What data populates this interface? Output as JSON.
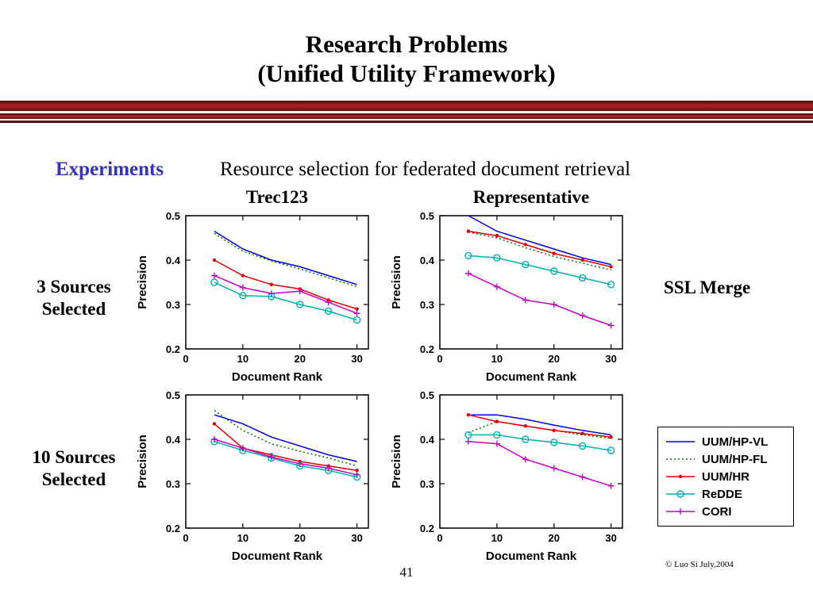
{
  "slide": {
    "title_line1": "Research Problems",
    "title_line2": "(Unified Utility Framework)",
    "experiments_label": "Experiments",
    "experiments_text": "Resource selection for federated document retrieval",
    "col_left": "Trec123",
    "col_right": "Representative",
    "row_top_line1": "3 Sources",
    "row_top_line2": "Selected",
    "row_bottom_line1": "10 Sources",
    "row_bottom_line2": "Selected",
    "ssl_merge": "SSL Merge",
    "copyright": "© Luo Si July,2004",
    "page_number": "41",
    "accent_color": "#6b0f0f",
    "experiments_color": "#3333bb"
  },
  "legend": {
    "items": [
      {
        "label": "UUM/HP-VL"
      },
      {
        "label": "UUM/HP-FL"
      },
      {
        "label": "UUM/HR"
      },
      {
        "label": "ReDDE"
      },
      {
        "label": "CORI"
      }
    ]
  },
  "series_styles": [
    {
      "name": "UUM/HP-VL",
      "color": "#0000dd",
      "dash": "none",
      "marker": "none"
    },
    {
      "name": "UUM/HP-FL",
      "color": "#007700",
      "dash": "2 3",
      "marker": "none"
    },
    {
      "name": "UUM/HR",
      "color": "#e00000",
      "dash": "none",
      "marker": "dot"
    },
    {
      "name": "ReDDE",
      "color": "#00b0b0",
      "dash": "none",
      "marker": "circle"
    },
    {
      "name": "CORI",
      "color": "#cc00cc",
      "dash": "none",
      "marker": "plus"
    }
  ],
  "chart_data": [
    {
      "type": "line",
      "title": "Trec123 — 3 Sources Selected",
      "xlabel": "Document Rank",
      "ylabel": "Precision",
      "xlim": [
        0,
        32
      ],
      "ylim": [
        0.2,
        0.5
      ],
      "xticks": [
        0,
        10,
        20,
        30
      ],
      "yticks": [
        0.2,
        0.3,
        0.4,
        0.5
      ],
      "x": [
        5,
        10,
        15,
        20,
        25,
        30
      ],
      "series": [
        {
          "name": "UUM/HP-VL",
          "values": [
            0.465,
            0.425,
            0.4,
            0.385,
            0.365,
            0.345
          ]
        },
        {
          "name": "UUM/HP-FL",
          "values": [
            0.46,
            0.42,
            0.398,
            0.38,
            0.36,
            0.34
          ]
        },
        {
          "name": "UUM/HR",
          "values": [
            0.4,
            0.365,
            0.345,
            0.335,
            0.31,
            0.29
          ]
        },
        {
          "name": "ReDDE",
          "values": [
            0.35,
            0.32,
            0.318,
            0.3,
            0.285,
            0.265
          ]
        },
        {
          "name": "CORI",
          "values": [
            0.365,
            0.338,
            0.325,
            0.33,
            0.305,
            0.28
          ]
        }
      ]
    },
    {
      "type": "line",
      "title": "Representative — 3 Sources Selected",
      "xlabel": "Document Rank",
      "ylabel": "Precision",
      "xlim": [
        0,
        32
      ],
      "ylim": [
        0.2,
        0.5
      ],
      "xticks": [
        0,
        10,
        20,
        30
      ],
      "yticks": [
        0.2,
        0.3,
        0.4,
        0.5
      ],
      "x": [
        5,
        10,
        15,
        20,
        25,
        30
      ],
      "series": [
        {
          "name": "UUM/HP-VL",
          "values": [
            0.5,
            0.465,
            0.445,
            0.425,
            0.405,
            0.39
          ]
        },
        {
          "name": "UUM/HP-FL",
          "values": [
            0.463,
            0.45,
            0.428,
            0.408,
            0.393,
            0.378
          ]
        },
        {
          "name": "UUM/HR",
          "values": [
            0.465,
            0.455,
            0.435,
            0.415,
            0.4,
            0.385
          ]
        },
        {
          "name": "ReDDE",
          "values": [
            0.41,
            0.405,
            0.39,
            0.375,
            0.36,
            0.345
          ]
        },
        {
          "name": "CORI",
          "values": [
            0.37,
            0.34,
            0.31,
            0.3,
            0.275,
            0.253
          ]
        }
      ]
    },
    {
      "type": "line",
      "title": "Trec123 — 10 Sources Selected",
      "xlabel": "Document Rank",
      "ylabel": "Precision",
      "xlim": [
        0,
        32
      ],
      "ylim": [
        0.2,
        0.5
      ],
      "xticks": [
        0,
        10,
        20,
        30
      ],
      "yticks": [
        0.2,
        0.3,
        0.4,
        0.5
      ],
      "x": [
        5,
        10,
        15,
        20,
        25,
        30
      ],
      "series": [
        {
          "name": "UUM/HP-VL",
          "values": [
            0.455,
            0.435,
            0.405,
            0.385,
            0.365,
            0.35
          ]
        },
        {
          "name": "UUM/HP-FL",
          "values": [
            0.465,
            0.42,
            0.39,
            0.373,
            0.358,
            0.34
          ]
        },
        {
          "name": "UUM/HR",
          "values": [
            0.435,
            0.38,
            0.365,
            0.35,
            0.34,
            0.33
          ]
        },
        {
          "name": "ReDDE",
          "values": [
            0.395,
            0.375,
            0.358,
            0.34,
            0.33,
            0.315
          ]
        },
        {
          "name": "CORI",
          "values": [
            0.4,
            0.38,
            0.36,
            0.345,
            0.335,
            0.32
          ]
        }
      ]
    },
    {
      "type": "line",
      "title": "Representative — 10 Sources Selected",
      "xlabel": "Document Rank",
      "ylabel": "Precision",
      "xlim": [
        0,
        32
      ],
      "ylim": [
        0.2,
        0.5
      ],
      "xticks": [
        0,
        10,
        20,
        30
      ],
      "yticks": [
        0.2,
        0.3,
        0.4,
        0.5
      ],
      "x": [
        5,
        10,
        15,
        20,
        25,
        30
      ],
      "series": [
        {
          "name": "UUM/HP-VL",
          "values": [
            0.455,
            0.455,
            0.445,
            0.432,
            0.42,
            0.41
          ]
        },
        {
          "name": "UUM/HP-FL",
          "values": [
            0.415,
            0.44,
            0.43,
            0.42,
            0.41,
            0.402
          ]
        },
        {
          "name": "UUM/HR",
          "values": [
            0.455,
            0.44,
            0.43,
            0.42,
            0.413,
            0.405
          ]
        },
        {
          "name": "ReDDE",
          "values": [
            0.41,
            0.41,
            0.4,
            0.393,
            0.385,
            0.375
          ]
        },
        {
          "name": "CORI",
          "values": [
            0.395,
            0.39,
            0.355,
            0.335,
            0.315,
            0.295
          ]
        }
      ]
    }
  ]
}
